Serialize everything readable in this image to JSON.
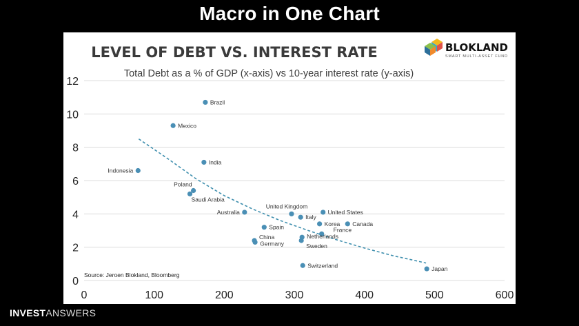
{
  "headline": "Macro in One Chart",
  "branding": {
    "name": "BLOKLAND",
    "tagline": "SMART MULTI-ASSET FUND",
    "footer_bold": "INVEST",
    "footer_light": "ANSWERS"
  },
  "colors": {
    "point": "#4a8fb5",
    "trend": "#3f8fae",
    "background": "#000000",
    "panel": "#ffffff"
  },
  "chart_data": {
    "type": "scatter",
    "title": "LEVEL OF DEBT VS. INTEREST RATE",
    "subtitle": "Total Debt as a % of GDP (x-axis) vs 10-year interest rate (y-axis)",
    "source": "Source: Jeroen Blokland, Bloomberg",
    "xlim": [
      0,
      600
    ],
    "ylim": [
      0,
      12
    ],
    "xticks": [
      0,
      100,
      200,
      300,
      400,
      500,
      600
    ],
    "yticks": [
      0,
      2,
      4,
      6,
      8,
      10,
      12
    ],
    "grid": "horizontal",
    "points": [
      {
        "label": "Brazil",
        "x": 173,
        "y": 10.7
      },
      {
        "label": "Mexico",
        "x": 127,
        "y": 9.3
      },
      {
        "label": "India",
        "x": 171,
        "y": 7.1
      },
      {
        "label": "Indonesia",
        "x": 77,
        "y": 6.6
      },
      {
        "label": "Poland",
        "x": 156,
        "y": 5.4
      },
      {
        "label": "Saudi Arabia",
        "x": 151,
        "y": 5.2
      },
      {
        "label": "Australia",
        "x": 229,
        "y": 4.1
      },
      {
        "label": "United Kingdom",
        "x": 296,
        "y": 4.0
      },
      {
        "label": "United States",
        "x": 341,
        "y": 4.1
      },
      {
        "label": "Italy",
        "x": 309,
        "y": 3.8
      },
      {
        "label": "Korea",
        "x": 336,
        "y": 3.4
      },
      {
        "label": "Canada",
        "x": 376,
        "y": 3.4
      },
      {
        "label": "Spain",
        "x": 257,
        "y": 3.2
      },
      {
        "label": "France",
        "x": 339,
        "y": 2.8
      },
      {
        "label": "Netherlands",
        "x": 311,
        "y": 2.6
      },
      {
        "label": "China",
        "x": 243,
        "y": 2.4
      },
      {
        "label": "Germany",
        "x": 244,
        "y": 2.3
      },
      {
        "label": "Sweden",
        "x": 310,
        "y": 2.4
      },
      {
        "label": "Switzerland",
        "x": 312,
        "y": 0.9
      },
      {
        "label": "Japan",
        "x": 489,
        "y": 0.7
      }
    ],
    "trendline": {
      "style": "dashed",
      "x": [
        78,
        120,
        160,
        200,
        240,
        280,
        320,
        360,
        400,
        440,
        488
      ],
      "y": [
        8.5,
        7.3,
        6.1,
        5.1,
        4.3,
        3.6,
        3.0,
        2.45,
        1.95,
        1.5,
        1.05
      ]
    }
  }
}
